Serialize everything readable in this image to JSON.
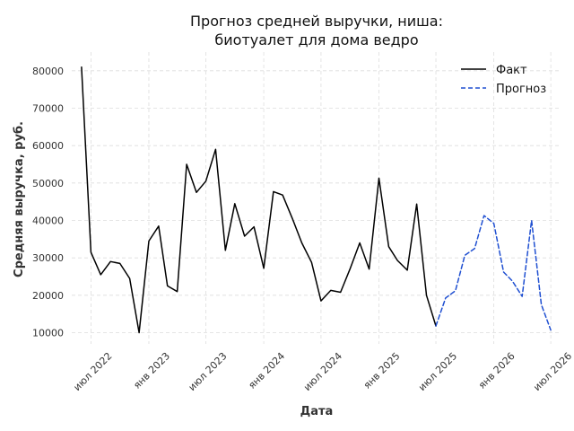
{
  "chart_data": {
    "type": "line",
    "title_lines": [
      "Прогноз средней выручки, ниша:",
      "биотуалет для дома ведро"
    ],
    "xlabel": "Дата",
    "ylabel": "Средняя выручка, руб.",
    "x_range": [
      "2022-05-01",
      "2026-08-01"
    ],
    "ylim": [
      7000,
      85000
    ],
    "grid": true,
    "legend_position": "top-right",
    "x_ticks": [
      {
        "date": "2022-07-01",
        "label": "июл 2022"
      },
      {
        "date": "2023-01-01",
        "label": "янв 2023"
      },
      {
        "date": "2023-07-01",
        "label": "июл 2023"
      },
      {
        "date": "2024-01-01",
        "label": "янв 2024"
      },
      {
        "date": "2024-07-01",
        "label": "июл 2024"
      },
      {
        "date": "2025-01-01",
        "label": "янв 2025"
      },
      {
        "date": "2025-07-01",
        "label": "июл 2025"
      },
      {
        "date": "2026-01-01",
        "label": "янв 2026"
      },
      {
        "date": "2026-07-01",
        "label": "июл 2026"
      }
    ],
    "y_ticks": [
      {
        "value": 10000,
        "label": "10000"
      },
      {
        "value": 20000,
        "label": "20000"
      },
      {
        "value": 30000,
        "label": "30000"
      },
      {
        "value": 40000,
        "label": "40000"
      },
      {
        "value": 50000,
        "label": "50000"
      },
      {
        "value": 60000,
        "label": "60000"
      },
      {
        "value": 70000,
        "label": "70000"
      },
      {
        "value": 80000,
        "label": "80000"
      }
    ],
    "series": [
      {
        "name": "Факт",
        "color": "#000000",
        "dash": "solid",
        "points": [
          {
            "x": "2022-06-01",
            "y": 81000
          },
          {
            "x": "2022-07-01",
            "y": 31500
          },
          {
            "x": "2022-08-01",
            "y": 25500
          },
          {
            "x": "2022-09-01",
            "y": 29000
          },
          {
            "x": "2022-10-01",
            "y": 28500
          },
          {
            "x": "2022-11-01",
            "y": 24500
          },
          {
            "x": "2022-12-01",
            "y": 10000
          },
          {
            "x": "2023-01-01",
            "y": 34500
          },
          {
            "x": "2023-02-01",
            "y": 38500
          },
          {
            "x": "2023-03-01",
            "y": 22500
          },
          {
            "x": "2023-04-01",
            "y": 21000
          },
          {
            "x": "2023-05-01",
            "y": 55000
          },
          {
            "x": "2023-06-01",
            "y": 47500
          },
          {
            "x": "2023-07-01",
            "y": 50500
          },
          {
            "x": "2023-08-01",
            "y": 59000
          },
          {
            "x": "2023-09-01",
            "y": 32000
          },
          {
            "x": "2023-10-01",
            "y": 44500
          },
          {
            "x": "2023-11-01",
            "y": 35800
          },
          {
            "x": "2023-12-01",
            "y": 38300
          },
          {
            "x": "2024-01-01",
            "y": 27200
          },
          {
            "x": "2024-02-01",
            "y": 47700
          },
          {
            "x": "2024-03-01",
            "y": 46800
          },
          {
            "x": "2024-04-01",
            "y": 40500
          },
          {
            "x": "2024-05-01",
            "y": 34000
          },
          {
            "x": "2024-06-01",
            "y": 28800
          },
          {
            "x": "2024-07-01",
            "y": 18500
          },
          {
            "x": "2024-08-01",
            "y": 21300
          },
          {
            "x": "2024-09-01",
            "y": 20800
          },
          {
            "x": "2024-10-01",
            "y": 27000
          },
          {
            "x": "2024-11-01",
            "y": 34000
          },
          {
            "x": "2024-12-01",
            "y": 27000
          },
          {
            "x": "2025-01-01",
            "y": 51300
          },
          {
            "x": "2025-02-01",
            "y": 33000
          },
          {
            "x": "2025-03-01",
            "y": 29300
          },
          {
            "x": "2025-04-01",
            "y": 26700
          },
          {
            "x": "2025-05-01",
            "y": 44400
          },
          {
            "x": "2025-06-01",
            "y": 20000
          },
          {
            "x": "2025-07-01",
            "y": 11800
          }
        ]
      },
      {
        "name": "Прогноз",
        "color": "#1f4fd1",
        "dash": "dashed",
        "points": [
          {
            "x": "2025-07-01",
            "y": 11800
          },
          {
            "x": "2025-08-01",
            "y": 19300
          },
          {
            "x": "2025-09-01",
            "y": 21200
          },
          {
            "x": "2025-10-01",
            "y": 30700
          },
          {
            "x": "2025-11-01",
            "y": 32500
          },
          {
            "x": "2025-12-01",
            "y": 41300
          },
          {
            "x": "2026-01-01",
            "y": 39200
          },
          {
            "x": "2026-02-01",
            "y": 26200
          },
          {
            "x": "2026-03-01",
            "y": 23800
          },
          {
            "x": "2026-04-01",
            "y": 19700
          },
          {
            "x": "2026-05-01",
            "y": 40000
          },
          {
            "x": "2026-06-01",
            "y": 17500
          },
          {
            "x": "2026-07-01",
            "y": 10700
          }
        ]
      }
    ]
  }
}
